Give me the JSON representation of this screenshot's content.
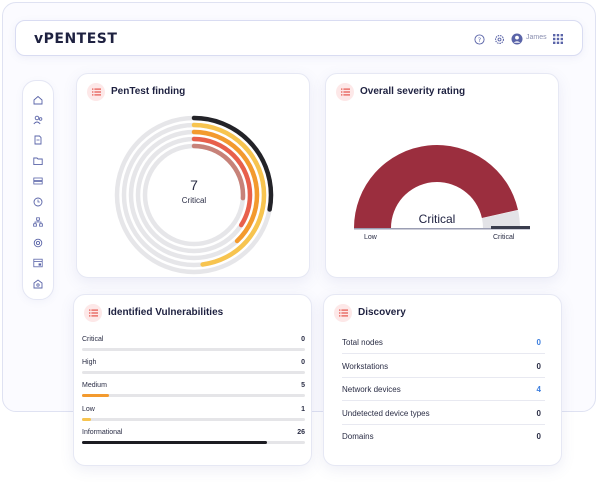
{
  "brand": {
    "logo": "vPENTEST"
  },
  "header": {
    "user_name": "James",
    "icons": [
      "help-icon",
      "settings-icon",
      "user-avatar-icon",
      "apps-grid-icon"
    ]
  },
  "sidebar": {
    "icons": [
      "home-icon",
      "users-icon",
      "document-icon",
      "folder-icon",
      "server-icon",
      "clock-icon",
      "network-icon",
      "shield-icon",
      "report-icon",
      "vault-icon"
    ]
  },
  "pentest": {
    "title": "PenTest finding",
    "count": "7",
    "label": "Critical",
    "rings": [
      {
        "fraction": 0.28,
        "color": "#232328"
      },
      {
        "fraction": 0.48,
        "color": "#f7c44f"
      },
      {
        "fraction": 0.38,
        "color": "#f39a2e"
      },
      {
        "fraction": 0.34,
        "color": "#e8604c"
      },
      {
        "fraction": 0.26,
        "color": "#c78279"
      }
    ]
  },
  "severity": {
    "title": "Overall severity rating",
    "rating": "Critical",
    "low_label": "Low",
    "high_label": "Critical",
    "level": 0.93,
    "gauge_color": "#9b2e3e"
  },
  "vulnerabilities": {
    "title": "Identified Vulnerabilities",
    "rows": [
      {
        "label": "Critical",
        "count": "0",
        "fraction": 0,
        "color": "#e05a4a"
      },
      {
        "label": "High",
        "count": "0",
        "fraction": 0,
        "color": "#f39a2e"
      },
      {
        "label": "Medium",
        "count": "5",
        "fraction": 0.12,
        "color": "#f39a2e"
      },
      {
        "label": "Low",
        "count": "1",
        "fraction": 0.04,
        "color": "#f7c44f"
      },
      {
        "label": "Informational",
        "count": "26",
        "fraction": 0.83,
        "color": "#1c1c22"
      }
    ]
  },
  "discovery": {
    "title": "Discovery",
    "rows": [
      {
        "label": "Total nodes",
        "value": "0",
        "color": "#3b7ddd"
      },
      {
        "label": "Workstations",
        "value": "0",
        "color": "#2a2d45"
      },
      {
        "label": "Network devices",
        "value": "4",
        "color": "#3b7ddd"
      },
      {
        "label": "Undetected device types",
        "value": "0",
        "color": "#2a2d45"
      },
      {
        "label": "Domains",
        "value": "0",
        "color": "#2a2d45"
      }
    ]
  }
}
